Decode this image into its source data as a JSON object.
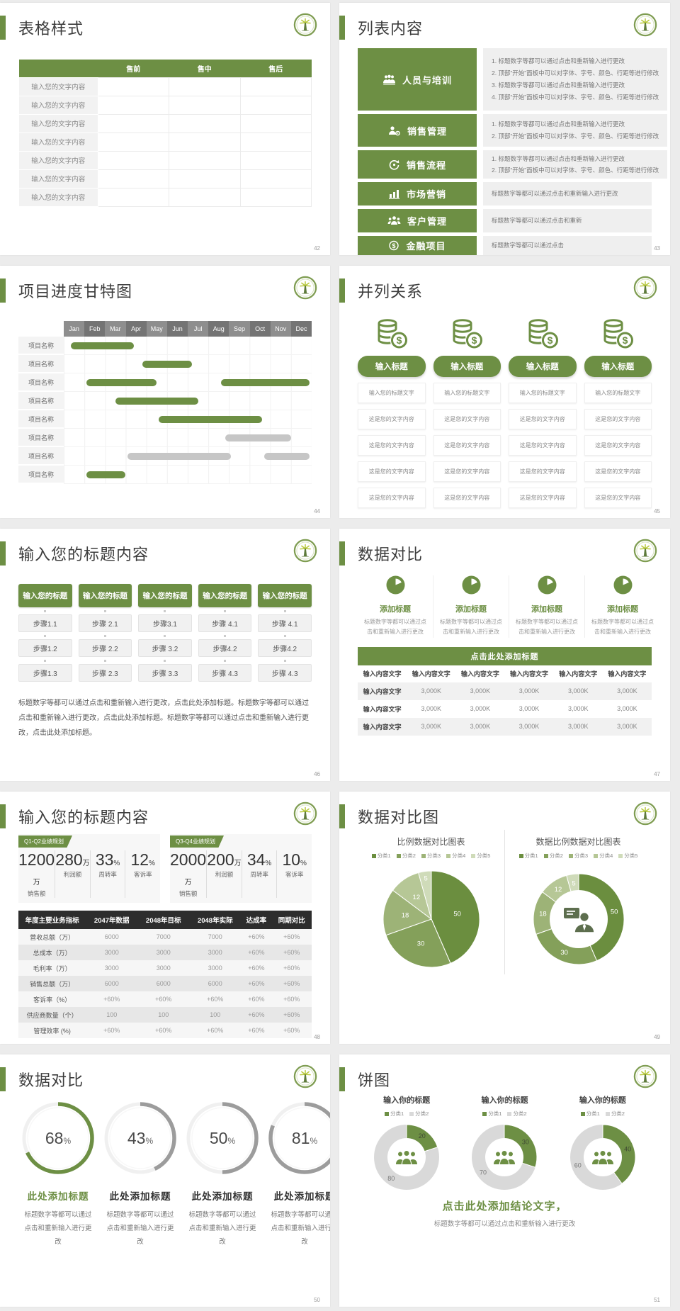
{
  "theme": {
    "green": "#6d8f44",
    "gantt_gray": "#c6c6c6",
    "dark_table_header": "#2d2d2d",
    "pie_colors": [
      "#6b8e3f",
      "#84a05a",
      "#9db377",
      "#b6c796",
      "#cfdbb9"
    ],
    "donut_gray": "#d9d9d9",
    "gauge_gray": "#9c9c9c"
  },
  "slides": {
    "s42": {
      "title": "表格样式",
      "page": "42",
      "table": {
        "headers": [
          "",
          "售前",
          "售中",
          "售后"
        ],
        "row_label": "输入您的文字内容",
        "row_count": 7
      }
    },
    "s43": {
      "title": "列表内容",
      "page": "43",
      "items": [
        {
          "icon": "people-training-icon",
          "label": "人员与培训",
          "numbered": true,
          "points": [
            "标题数字等都可以通过点击和重新输入进行更改",
            "顶部“开始”面板中可以对字体、字号、颜色、行距等进行修改",
            "标题数字等都可以通过点击和重新输入进行更改",
            "顶部“开始”面板中可以对字体、字号、颜色、行距等进行修改"
          ]
        },
        {
          "icon": "sales-manage-icon",
          "label": "销售管理",
          "numbered": true,
          "points": [
            "标题数字等都可以通过点击和重新输入进行更改",
            "顶部“开始”面板中可以对字体、字号、颜色、行距等进行修改"
          ]
        },
        {
          "icon": "sales-process-icon",
          "label": "销售流程",
          "numbered": true,
          "points": [
            "标题数字等都可以通过点击和重新输入进行更改",
            "顶部“开始”面板中可以对字体、字号、颜色、行距等进行修改"
          ]
        },
        {
          "icon": "marketing-icon",
          "label": "市场营销",
          "numbered": false,
          "points": [
            "标题数字等都可以通过点击和重新输入进行更改"
          ]
        },
        {
          "icon": "customer-manage-icon",
          "label": "客户管理",
          "numbered": false,
          "points": [
            "标题数字等都可以通过点击和重新"
          ]
        },
        {
          "icon": "finance-icon",
          "label": "金融项目",
          "numbered": false,
          "points": [
            "标题数字等都可以通过点击"
          ]
        }
      ]
    },
    "s44": {
      "title": "项目进度甘特图",
      "page": "44",
      "months": [
        "Jan",
        "Feb",
        "Mar",
        "Apr",
        "May",
        "Jun",
        "Jul",
        "Aug",
        "Sep",
        "Oct",
        "Nov",
        "Dec"
      ],
      "row_label": "项目名称",
      "row_count": 8,
      "bars": [
        {
          "row": 0,
          "color": "green",
          "start": 0.35,
          "end": 3.4
        },
        {
          "row": 1,
          "color": "green",
          "start": 3.8,
          "end": 6.2
        },
        {
          "row": 2,
          "color": "green",
          "start": 1.1,
          "end": 4.5
        },
        {
          "row": 2,
          "color": "green",
          "start": 7.6,
          "end": 11.9
        },
        {
          "row": 3,
          "color": "green",
          "start": 2.5,
          "end": 6.5
        },
        {
          "row": 4,
          "color": "green",
          "start": 4.6,
          "end": 9.6
        },
        {
          "row": 5,
          "color": "gray",
          "start": 7.8,
          "end": 11.0
        },
        {
          "row": 6,
          "color": "gray",
          "start": 3.1,
          "end": 8.1
        },
        {
          "row": 6,
          "color": "gray",
          "start": 9.7,
          "end": 11.9
        },
        {
          "row": 7,
          "color": "green",
          "start": 1.1,
          "end": 3.0
        }
      ]
    },
    "s45": {
      "title": "并列关系",
      "page": "45",
      "column_count": 4,
      "icon": "coins-dollar-icon",
      "button_label": "输入标题",
      "cells": [
        "输入您的标题文字",
        "这是您的文字内容",
        "这是您的文字内容",
        "这是您的文字内容",
        "这是您的文字内容"
      ]
    },
    "s46": {
      "title": "输入您的标题内容",
      "page": "46",
      "header_label": "输入您的标题",
      "columns": [
        [
          "步骤1.1",
          "步骤1.2",
          "步骤1.3"
        ],
        [
          "步骤 2.1",
          "步骤 2.2",
          "步骤 2.3"
        ],
        [
          "步骤3.1",
          "步骤 3.2",
          "步骤 3.3"
        ],
        [
          "步骤 4.1",
          "步骤4.2",
          "步骤 4.3"
        ],
        [
          "步骤 4.1",
          "步骤4.2",
          "步骤 4.3"
        ]
      ],
      "paragraph": "标题数字等都可以通过点击和重新输入进行更改，点击此处添加标题。标题数字等都可以通过点击和重新输入进行更改，点击此处添加标题。标题数字等都可以通过点击和重新输入进行更改，点击此处添加标题。"
    },
    "s47": {
      "title": "数据对比",
      "page": "47",
      "features": [
        {
          "icon": "pie-chart-icon",
          "title": "添加标题",
          "desc": "标题数字等都可以通过点击和重新输入进行更改"
        },
        {
          "icon": "pie-chart-icon",
          "title": "添加标题",
          "desc": "标题数字等都可以通过点击和重新输入进行更改"
        },
        {
          "icon": "pie-chart-icon",
          "title": "添加标题",
          "desc": "标题数字等都可以通过点击和重新输入进行更改"
        },
        {
          "icon": "pie-chart-icon",
          "title": "添加标题",
          "desc": "标题数字等都可以通过点击和重新输入进行更改"
        }
      ],
      "band_label": "点击此处添加标题",
      "table": {
        "headers": [
          "输入内容文字",
          "输入内容文字",
          "输入内容文字",
          "输入内容文字",
          "输入内容文字",
          "输入内容文字"
        ],
        "rows": [
          [
            "输入内容文字",
            "3,000K",
            "3,000K",
            "3,000K",
            "3,000K",
            "3,000K"
          ],
          [
            "输入内容文字",
            "3,000K",
            "3,000K",
            "3,000K",
            "3,000K",
            "3,000K"
          ],
          [
            "输入内容文字",
            "3,000K",
            "3,000K",
            "3,000K",
            "3,000K",
            "3,000K"
          ]
        ]
      }
    },
    "s48": {
      "title": "输入您的标题内容",
      "page": "48",
      "groups": [
        {
          "tag": "Q1-Q2业绩规划",
          "stats": [
            {
              "value": "1200",
              "unit": "万",
              "label": "销售额"
            },
            {
              "value": "280",
              "unit": "万",
              "label": "利润额"
            },
            {
              "value": "33",
              "unit": "%",
              "label": "周转率"
            },
            {
              "value": "12",
              "unit": "%",
              "label": "客诉率"
            }
          ]
        },
        {
          "tag": "Q3-Q4业绩规划",
          "stats": [
            {
              "value": "2000",
              "unit": "万",
              "label": "销售额"
            },
            {
              "value": "200",
              "unit": "万",
              "label": "利润额"
            },
            {
              "value": "34",
              "unit": "%",
              "label": "周转率"
            },
            {
              "value": "10",
              "unit": "%",
              "label": "客诉率"
            }
          ]
        }
      ],
      "table": {
        "headers": [
          "年度主要业务指标",
          "2047年数据",
          "2048年目标",
          "2048年实际",
          "达成率",
          "同期对比"
        ],
        "rows": [
          [
            "营收总额（万）",
            "6000",
            "7000",
            "7000",
            "+60%",
            "+60%"
          ],
          [
            "总成本（万）",
            "3000",
            "3000",
            "3000",
            "+60%",
            "+60%"
          ],
          [
            "毛利率（万）",
            "3000",
            "3000",
            "3000",
            "+60%",
            "+60%"
          ],
          [
            "销售总额（万）",
            "6000",
            "6000",
            "6000",
            "+60%",
            "+60%"
          ],
          [
            "客诉率（%）",
            "+60%",
            "+60%",
            "+60%",
            "+60%",
            "+60%"
          ],
          [
            "供应商数量（个）",
            "100",
            "100",
            "100",
            "+60%",
            "+60%"
          ],
          [
            "管理效率 (%)",
            "+60%",
            "+60%",
            "+60%",
            "+60%",
            "+60%"
          ]
        ]
      }
    },
    "s49": {
      "title": "数据对比图",
      "page": "49",
      "charts": [
        {
          "type": "pie",
          "title": "比例数据对比图表",
          "legend": [
            "分类1",
            "分类2",
            "分类3",
            "分类4",
            "分类5"
          ],
          "values": [
            50,
            30,
            18,
            12,
            5
          ]
        },
        {
          "type": "donut",
          "title": "数据比例数据对比图表",
          "legend": [
            "分类1",
            "分类2",
            "分类3",
            "分类4",
            "分类5"
          ],
          "values": [
            50,
            30,
            18,
            12,
            5
          ],
          "center_icon": "consultant-icon"
        }
      ]
    },
    "s50": {
      "title": "数据对比",
      "page": "50",
      "heading": "此处添加标题",
      "desc": "标题数字等都可以通过点击和重新输入进行更改",
      "gauges": [
        {
          "percent": 68,
          "accent": true
        },
        {
          "percent": 43,
          "accent": false
        },
        {
          "percent": 50,
          "accent": false
        },
        {
          "percent": 81,
          "accent": false
        }
      ]
    },
    "s51": {
      "title": "饼图",
      "page": "51",
      "pies": [
        {
          "title": "输入你的标题",
          "legend": [
            "分类1",
            "分类2"
          ],
          "values": [
            20,
            80
          ],
          "center_icon": "people-group-icon"
        },
        {
          "title": "输入你的标题",
          "legend": [
            "分类1",
            "分类2"
          ],
          "values": [
            30,
            70
          ],
          "center_icon": "people-group-icon"
        },
        {
          "title": "输入你的标题",
          "legend": [
            "分类1",
            "分类2"
          ],
          "values": [
            40,
            60
          ],
          "center_icon": "people-group-icon"
        }
      ],
      "conclusion": "点击此处添加结论文字，",
      "conclusion_sub": "标题数字等都可以通过点击和重新输入进行更改"
    }
  }
}
